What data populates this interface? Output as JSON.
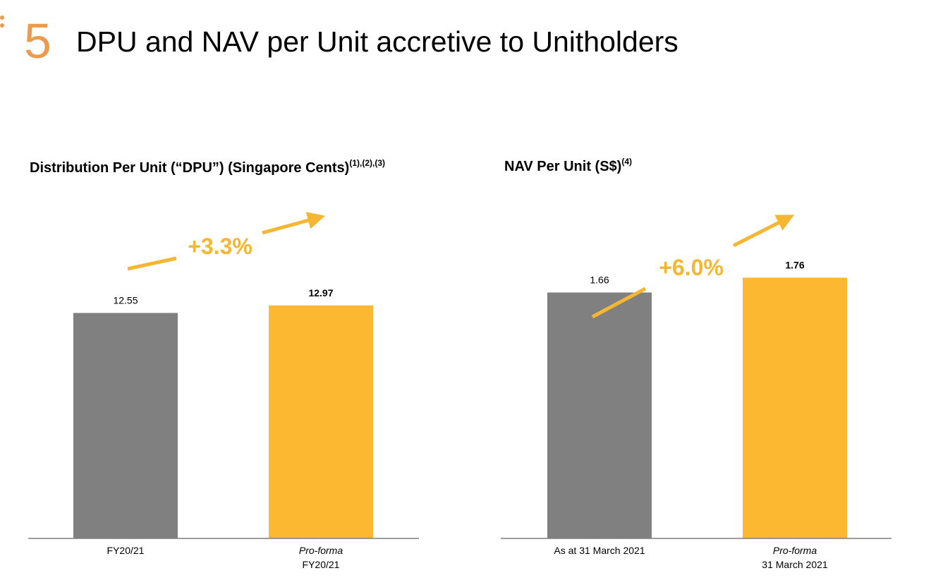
{
  "slide": {
    "number": "5",
    "title": "DPU and NAV per Unit accretive to Unitholders"
  },
  "colors": {
    "accent_orange": "#ee9a4d",
    "bar_grey": "#808080",
    "bar_yellow": "#fbb830",
    "arrow_yellow": "#f5b731"
  },
  "chart_data": [
    {
      "type": "bar",
      "title": "Distribution Per Unit (“DPU”) (Singapore Cents)",
      "title_footnote": "(1),(2),(3)",
      "categories": [
        {
          "line1": "FY20/21",
          "line2": ""
        },
        {
          "line1": "Pro-forma",
          "line2": "FY20/21"
        }
      ],
      "values": [
        12.55,
        12.97
      ],
      "value_labels": [
        "12.55",
        "12.97"
      ],
      "bar_colors": [
        "#808080",
        "#fbb830"
      ],
      "ylim": [
        0,
        17.4
      ],
      "growth_label": "+3.3%",
      "grid": false,
      "legend": "none"
    },
    {
      "type": "bar",
      "title": "NAV Per Unit (S$)",
      "title_footnote": "(4)",
      "categories": [
        {
          "line1": "As at 31 March 2021",
          "line2": ""
        },
        {
          "line1": "Pro-forma",
          "line2": "31 March 2021"
        }
      ],
      "values": [
        1.66,
        1.76
      ],
      "value_labels": [
        "1.66",
        "1.76"
      ],
      "bar_colors": [
        "#808080",
        "#fbb830"
      ],
      "ylim": [
        0,
        2.11
      ],
      "growth_label": "+6.0%",
      "grid": false,
      "legend": "none"
    }
  ]
}
